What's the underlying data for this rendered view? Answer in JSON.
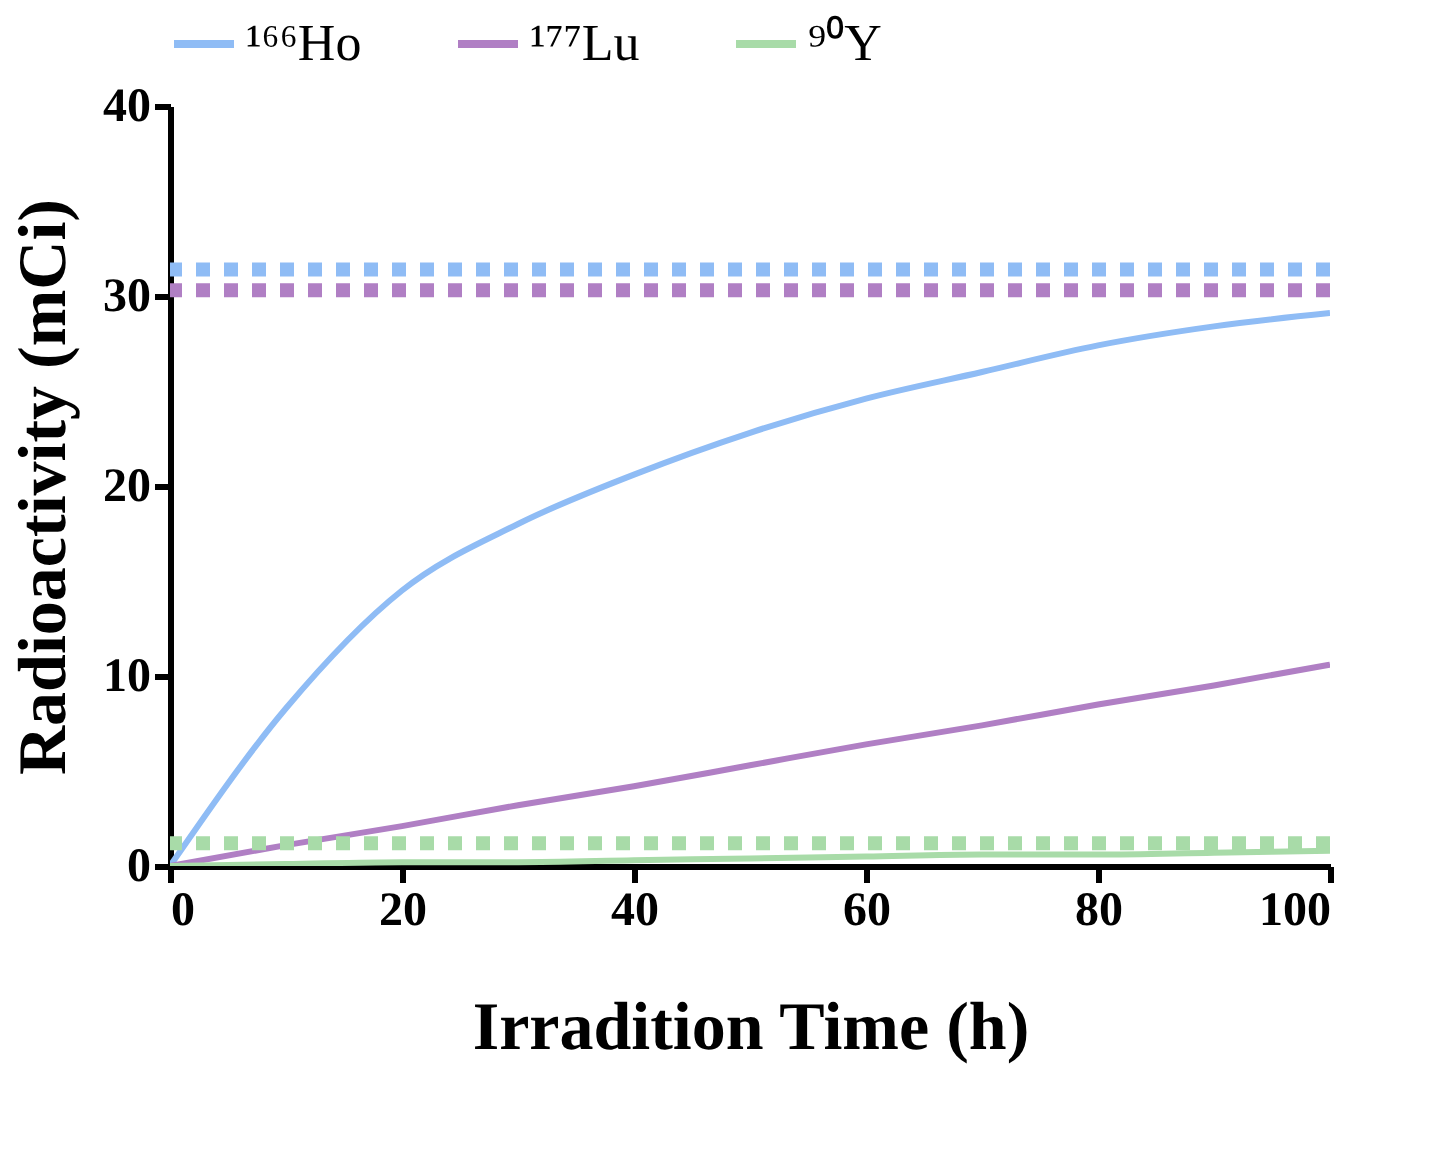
{
  "chart_data": {
    "type": "line",
    "xlabel": "Irradition Time (h)",
    "ylabel": "Radioactivity (mCi)",
    "x": [
      0,
      10,
      20,
      30,
      40,
      50,
      60,
      70,
      80,
      90,
      100
    ],
    "xlim": [
      0,
      100
    ],
    "xticks": [
      0,
      20,
      40,
      60,
      80,
      100
    ],
    "ylim": [
      0,
      40
    ],
    "yticks": [
      0,
      10,
      20,
      30,
      40
    ],
    "grid": false,
    "legend": "top",
    "marker": "none",
    "series": [
      {
        "name": "¹⁶⁶Ho",
        "color": "#8fbcf5",
        "line_style": "solid",
        "values": [
          0,
          8.3,
          14.5,
          18.0,
          20.6,
          22.8,
          24.6,
          26.0,
          27.4,
          28.4,
          29.1
        ]
      },
      {
        "name": "¹⁷⁷Lu",
        "color": "#b07fc4",
        "line_style": "solid",
        "values": [
          0,
          1.1,
          2.1,
          3.2,
          4.2,
          5.3,
          6.4,
          7.4,
          8.5,
          9.5,
          10.6
        ]
      },
      {
        "name": "⁹⁰Y",
        "color": "#a8dba8",
        "line_style": "solid",
        "values": [
          0,
          0.1,
          0.2,
          0.2,
          0.3,
          0.4,
          0.5,
          0.6,
          0.6,
          0.7,
          0.8
        ]
      }
    ],
    "ref_lines": [
      {
        "axis": "y",
        "value": 31.4,
        "color": "#8fbcf5",
        "line_style": "dotted"
      },
      {
        "axis": "y",
        "value": 30.3,
        "color": "#b07fc4",
        "line_style": "dotted"
      },
      {
        "axis": "y",
        "value": 1.2,
        "color": "#a8dba8",
        "line_style": "dotted"
      }
    ]
  }
}
